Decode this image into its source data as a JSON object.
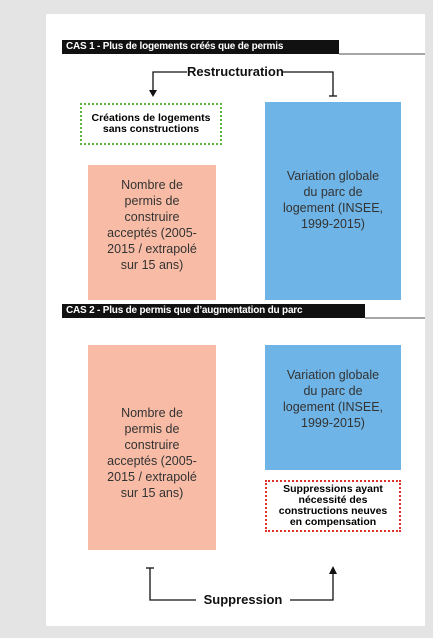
{
  "case1": {
    "title": "CAS 1 - Plus de logements créés que de permis",
    "arrow_label": "Restructuration",
    "dotted_box": "Créations de logements sans constructions",
    "left_box": "Nombre de permis de construire acceptés (2005-2015 / extrapolé sur 15 ans)",
    "right_box": "Variation globale du parc de logement (INSEE, 1999-2015)"
  },
  "case2": {
    "title": "CAS 2 - Plus de permis que d’augmentation du parc",
    "left_box": "Nombre de permis de construire acceptés (2005-2015 / extrapolé sur 15 ans)",
    "right_box": "Variation globale du parc de logement (INSEE, 1999-2015)",
    "dotted_box": "Suppressions ayant nécessité des constructions neuves en compensation",
    "arrow_label": "Suppression"
  }
}
